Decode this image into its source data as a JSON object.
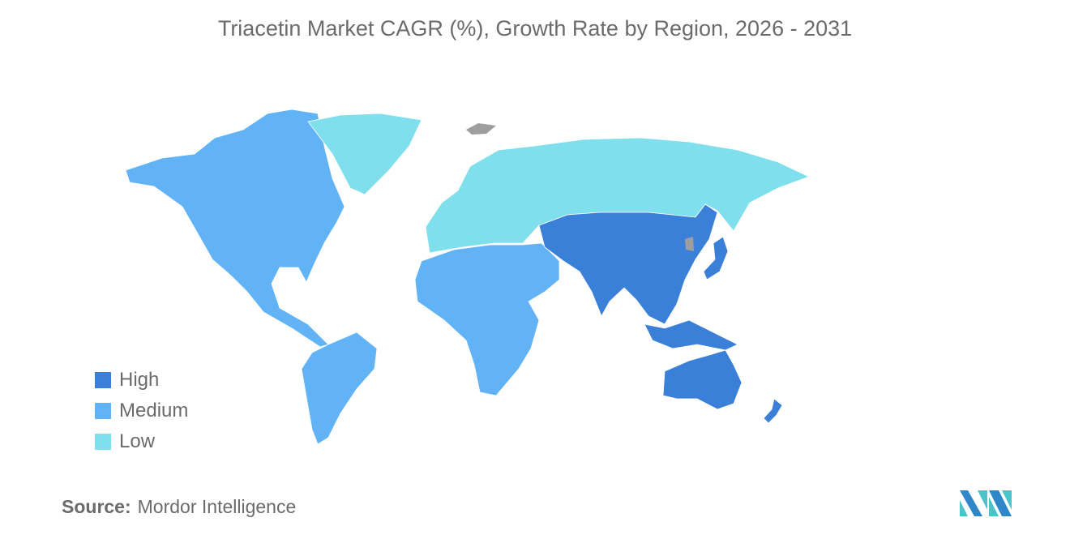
{
  "title": "Triacetin Market CAGR (%), Growth Rate by Region, 2026 - 2031",
  "legend": [
    {
      "label": "High",
      "color": "#3b80d8"
    },
    {
      "label": "Medium",
      "color": "#62b3f6"
    },
    {
      "label": "Low",
      "color": "#7fdfed"
    }
  ],
  "no_data_color": "#9e9e9e",
  "regions": [
    {
      "name": "North America",
      "level": "Medium"
    },
    {
      "name": "South America",
      "level": "Medium"
    },
    {
      "name": "Greenland",
      "level": "Low"
    },
    {
      "name": "Europe & Russia",
      "level": "Low"
    },
    {
      "name": "Middle East & Africa",
      "level": "Medium"
    },
    {
      "name": "Asia-Pacific",
      "level": "High"
    },
    {
      "name": "Australia & New Zealand",
      "level": "High"
    }
  ],
  "source": {
    "label": "Source:",
    "value": "Mordor Intelligence"
  }
}
